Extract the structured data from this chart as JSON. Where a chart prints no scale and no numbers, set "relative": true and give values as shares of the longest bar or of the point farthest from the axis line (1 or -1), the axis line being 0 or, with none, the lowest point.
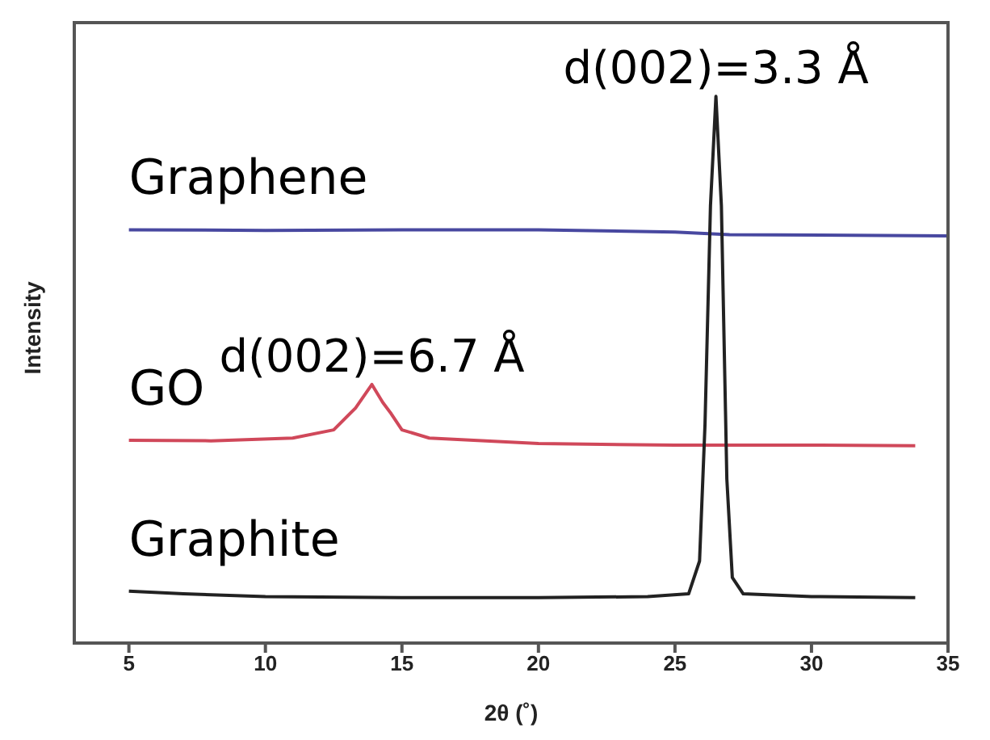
{
  "chart_data": {
    "type": "line",
    "relative": true,
    "xlabel": "2θ (˚)",
    "ylabel": "Intensity",
    "xlim": [
      3,
      35
    ],
    "xticks": [
      5,
      10,
      15,
      20,
      25,
      30,
      35
    ],
    "legend": false,
    "grid": false,
    "marker": "none",
    "line_style": "solid",
    "annotations": [
      {
        "text": "d(002)=3.3 Å",
        "x": 26.5,
        "y": 1.0
      },
      {
        "text": "d(002)=6.7 Å",
        "x": 13.9,
        "y": 0.473
      }
    ],
    "series": [
      {
        "name": "Graphene",
        "color": "#4848a0",
        "x": [
          5,
          10,
          15,
          20,
          25,
          27,
          35
        ],
        "values": [
          0.756,
          0.755,
          0.756,
          0.756,
          0.752,
          0.747,
          0.745
        ]
      },
      {
        "name": "GO",
        "color": "#d0485a",
        "x": [
          5,
          8,
          11,
          12.5,
          13.3,
          13.9,
          14.3,
          14.6,
          15,
          16,
          20,
          25,
          30,
          33.8
        ],
        "values": [
          0.371,
          0.37,
          0.375,
          0.39,
          0.43,
          0.473,
          0.44,
          0.42,
          0.39,
          0.375,
          0.365,
          0.362,
          0.362,
          0.361
        ]
      },
      {
        "name": "Graphite",
        "color": "#222222",
        "x": [
          5,
          7,
          10,
          15,
          20,
          24,
          25.5,
          25.9,
          26.1,
          26.3,
          26.5,
          26.7,
          26.9,
          27.1,
          27.5,
          30,
          33.8
        ],
        "values": [
          0.095,
          0.09,
          0.085,
          0.083,
          0.083,
          0.085,
          0.09,
          0.15,
          0.4,
          0.8,
          1.0,
          0.8,
          0.3,
          0.12,
          0.09,
          0.085,
          0.083
        ]
      }
    ]
  }
}
